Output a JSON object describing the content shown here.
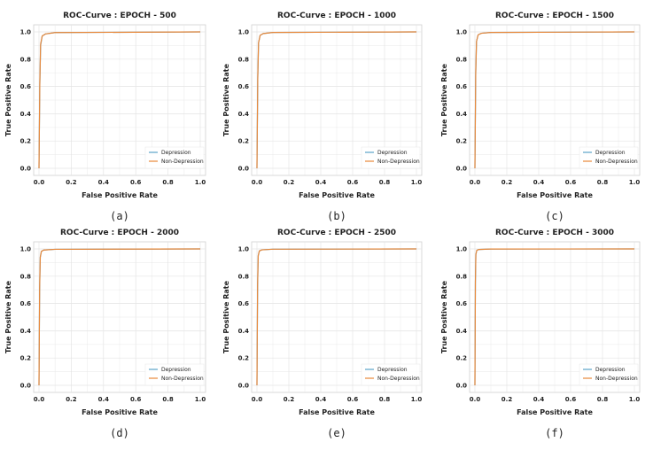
{
  "figure": {
    "legend_labels": [
      "Depression",
      "Non-Depression"
    ],
    "colors": {
      "depression": "#5ba3c9",
      "non_depression": "#e8883a"
    }
  },
  "chart_data": [
    {
      "type": "line",
      "title": "ROC-Curve : EPOCH - 500",
      "caption": "(a)",
      "xlabel": "False Positive Rate",
      "ylabel": "True Positive Rate",
      "xlim": [
        0,
        1
      ],
      "ylim": [
        0,
        1
      ],
      "xticks": [
        "0.0",
        "0.2",
        "0.4",
        "0.6",
        "0.8",
        "1.0"
      ],
      "yticks": [
        "0.0",
        "0.2",
        "0.4",
        "0.6",
        "0.8",
        "1.0"
      ],
      "legend_position": "bottom-right",
      "series": [
        {
          "name": "Depression",
          "x": [
            0,
            0.005,
            0.01,
            0.02,
            0.04,
            0.1,
            1.0
          ],
          "y": [
            0,
            0.6,
            0.9,
            0.97,
            0.985,
            0.995,
            1.0
          ]
        },
        {
          "name": "Non-Depression",
          "x": [
            0,
            0.005,
            0.01,
            0.02,
            0.04,
            0.1,
            1.0
          ],
          "y": [
            0,
            0.62,
            0.91,
            0.97,
            0.985,
            0.995,
            1.0
          ]
        }
      ]
    },
    {
      "type": "line",
      "title": "ROC-Curve : EPOCH - 1000",
      "caption": "(b)",
      "xlabel": "False Positive Rate",
      "ylabel": "True Positive Rate",
      "xlim": [
        0,
        1
      ],
      "ylim": [
        0,
        1
      ],
      "xticks": [
        "0.0",
        "0.2",
        "0.4",
        "0.6",
        "0.8",
        "1.0"
      ],
      "yticks": [
        "0.0",
        "0.2",
        "0.4",
        "0.6",
        "0.8",
        "1.0"
      ],
      "legend_position": "bottom-right",
      "series": [
        {
          "name": "Depression",
          "x": [
            0,
            0.005,
            0.01,
            0.02,
            0.04,
            0.1,
            1.0
          ],
          "y": [
            0,
            0.65,
            0.92,
            0.975,
            0.988,
            0.996,
            1.0
          ]
        },
        {
          "name": "Non-Depression",
          "x": [
            0,
            0.005,
            0.01,
            0.02,
            0.04,
            0.1,
            1.0
          ],
          "y": [
            0,
            0.66,
            0.92,
            0.975,
            0.988,
            0.996,
            1.0
          ]
        }
      ]
    },
    {
      "type": "line",
      "title": "ROC-Curve : EPOCH - 1500",
      "caption": "(c)",
      "xlabel": "False Positive Rate",
      "ylabel": "True Positive Rate",
      "xlim": [
        0,
        1
      ],
      "ylim": [
        0,
        1
      ],
      "xticks": [
        "0.0",
        "0.2",
        "0.4",
        "0.6",
        "0.8",
        "1.0"
      ],
      "yticks": [
        "0.0",
        "0.2",
        "0.4",
        "0.6",
        "0.8",
        "1.0"
      ],
      "legend_position": "bottom-right",
      "series": [
        {
          "name": "Depression",
          "x": [
            0,
            0.005,
            0.01,
            0.02,
            0.04,
            0.1,
            1.0
          ],
          "y": [
            0,
            0.68,
            0.93,
            0.978,
            0.99,
            0.996,
            1.0
          ]
        },
        {
          "name": "Non-Depression",
          "x": [
            0,
            0.005,
            0.01,
            0.02,
            0.04,
            0.1,
            1.0
          ],
          "y": [
            0,
            0.7,
            0.93,
            0.978,
            0.99,
            0.996,
            1.0
          ]
        }
      ]
    },
    {
      "type": "line",
      "title": "ROC-Curve : EPOCH - 2000",
      "caption": "(d)",
      "xlabel": "False Positive Rate",
      "ylabel": "True Positive Rate",
      "xlim": [
        0,
        1
      ],
      "ylim": [
        0,
        1
      ],
      "xticks": [
        "0.0",
        "0.2",
        "0.4",
        "0.6",
        "0.8",
        "1.0"
      ],
      "yticks": [
        "0.0",
        "0.2",
        "0.4",
        "0.6",
        "0.8",
        "1.0"
      ],
      "legend_position": "bottom-right",
      "series": [
        {
          "name": "Depression",
          "x": [
            0,
            0.004,
            0.008,
            0.015,
            0.03,
            0.1,
            1.0
          ],
          "y": [
            0,
            0.7,
            0.94,
            0.982,
            0.992,
            0.997,
            1.0
          ]
        },
        {
          "name": "Non-Depression",
          "x": [
            0,
            0.004,
            0.008,
            0.015,
            0.03,
            0.1,
            1.0
          ],
          "y": [
            0,
            0.72,
            0.94,
            0.982,
            0.992,
            0.997,
            1.0
          ]
        }
      ]
    },
    {
      "type": "line",
      "title": "ROC-Curve : EPOCH - 2500",
      "caption": "(e)",
      "xlabel": "False Positive Rate",
      "ylabel": "True Positive Rate",
      "xlim": [
        0,
        1
      ],
      "ylim": [
        0,
        1
      ],
      "xticks": [
        "0.0",
        "0.2",
        "0.4",
        "0.6",
        "0.8",
        "1.0"
      ],
      "yticks": [
        "0.0",
        "0.2",
        "0.4",
        "0.6",
        "0.8",
        "1.0"
      ],
      "legend_position": "bottom-right",
      "series": [
        {
          "name": "Depression",
          "x": [
            0,
            0.004,
            0.008,
            0.015,
            0.03,
            0.1,
            1.0
          ],
          "y": [
            0,
            0.72,
            0.95,
            0.985,
            0.993,
            0.998,
            1.0
          ]
        },
        {
          "name": "Non-Depression",
          "x": [
            0,
            0.004,
            0.008,
            0.015,
            0.03,
            0.1,
            1.0
          ],
          "y": [
            0,
            0.74,
            0.95,
            0.985,
            0.993,
            0.998,
            1.0
          ]
        }
      ]
    },
    {
      "type": "line",
      "title": "ROC-Curve : EPOCH - 3000",
      "caption": "(f)",
      "xlabel": "False Positive Rate",
      "ylabel": "True Positive Rate",
      "xlim": [
        0,
        1
      ],
      "ylim": [
        0,
        1
      ],
      "xticks": [
        "0.0",
        "0.2",
        "0.4",
        "0.6",
        "0.8",
        "1.0"
      ],
      "yticks": [
        "0.0",
        "0.2",
        "0.4",
        "0.6",
        "0.8",
        "1.0"
      ],
      "legend_position": "bottom-right",
      "series": [
        {
          "name": "Depression",
          "x": [
            0,
            0.003,
            0.006,
            0.012,
            0.025,
            0.1,
            1.0
          ],
          "y": [
            0,
            0.75,
            0.96,
            0.99,
            0.996,
            0.999,
            1.0
          ]
        },
        {
          "name": "Non-Depression",
          "x": [
            0,
            0.003,
            0.006,
            0.012,
            0.025,
            0.1,
            1.0
          ],
          "y": [
            0,
            0.76,
            0.96,
            0.99,
            0.996,
            0.999,
            1.0
          ]
        }
      ]
    }
  ]
}
